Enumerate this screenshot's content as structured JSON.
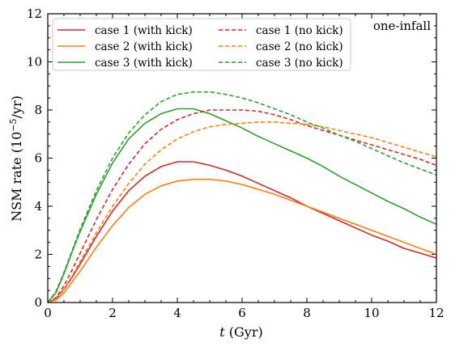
{
  "chart_data": {
    "type": "line",
    "annotation": "one-infall",
    "xlabel": "t (Gyr)",
    "ylabel": "NSM rate (10^-5/yr)",
    "xlim": [
      0,
      12
    ],
    "ylim": [
      0,
      12
    ],
    "x_ticks": [
      0,
      2,
      4,
      6,
      8,
      10,
      12
    ],
    "y_ticks": [
      0,
      2,
      4,
      6,
      8,
      10,
      12
    ],
    "grid": false,
    "legend_position": "top-left",
    "series": [
      {
        "name": "case 1 (with kick)",
        "color": "#d62728",
        "dash": "solid",
        "x": [
          0,
          0.25,
          0.5,
          0.75,
          1,
          1.5,
          2,
          2.5,
          3,
          3.5,
          4,
          4.5,
          5,
          5.5,
          6,
          6.5,
          7,
          7.5,
          8,
          8.5,
          9,
          9.5,
          10,
          10.5,
          11,
          11.5,
          12
        ],
        "y": [
          0,
          0.15,
          0.55,
          1.05,
          1.6,
          2.75,
          3.8,
          4.65,
          5.25,
          5.65,
          5.85,
          5.85,
          5.7,
          5.5,
          5.25,
          4.95,
          4.65,
          4.35,
          4.0,
          3.7,
          3.4,
          3.1,
          2.8,
          2.55,
          2.25,
          2.05,
          1.85
        ]
      },
      {
        "name": "case 2 (with kick)",
        "color": "#ff7f0e",
        "dash": "solid",
        "x": [
          0,
          0.25,
          0.5,
          0.75,
          1,
          1.5,
          2,
          2.5,
          3,
          3.5,
          4,
          4.5,
          5,
          5.5,
          6,
          6.5,
          7,
          7.5,
          8,
          8.5,
          9,
          9.5,
          10,
          10.5,
          11,
          11.5,
          12
        ],
        "y": [
          0,
          0.1,
          0.4,
          0.85,
          1.3,
          2.3,
          3.2,
          3.95,
          4.5,
          4.85,
          5.05,
          5.12,
          5.12,
          5.05,
          4.9,
          4.7,
          4.5,
          4.25,
          4.0,
          3.75,
          3.5,
          3.25,
          3.0,
          2.75,
          2.5,
          2.25,
          2.0
        ]
      },
      {
        "name": "case 3 (with kick)",
        "color": "#2ca02c",
        "dash": "solid",
        "x": [
          0,
          0.25,
          0.5,
          0.75,
          1,
          1.5,
          2,
          2.5,
          3,
          3.5,
          4,
          4.5,
          5,
          5.5,
          6,
          6.5,
          7,
          7.5,
          8,
          8.5,
          9,
          9.5,
          10,
          10.5,
          11,
          11.5,
          12
        ],
        "y": [
          0,
          0.4,
          1.2,
          2.1,
          2.95,
          4.5,
          5.8,
          6.8,
          7.45,
          7.85,
          8.05,
          8.05,
          7.85,
          7.55,
          7.25,
          6.9,
          6.6,
          6.3,
          6.0,
          5.65,
          5.25,
          4.9,
          4.55,
          4.2,
          3.9,
          3.55,
          3.25
        ]
      },
      {
        "name": "case 1 (no kick)",
        "color": "#d62728",
        "dash": "dashed",
        "x": [
          0,
          0.25,
          0.5,
          0.75,
          1,
          1.5,
          2,
          2.5,
          3,
          3.5,
          4,
          4.5,
          5,
          5.5,
          6,
          6.5,
          7,
          7.5,
          8,
          8.5,
          9,
          9.5,
          10,
          10.5,
          11,
          11.5,
          12
        ],
        "y": [
          0,
          0.2,
          0.7,
          1.35,
          2.05,
          3.45,
          4.7,
          5.75,
          6.6,
          7.2,
          7.6,
          7.85,
          8.0,
          8.0,
          8.0,
          7.95,
          7.8,
          7.6,
          7.35,
          7.15,
          6.95,
          6.75,
          6.55,
          6.35,
          6.15,
          5.95,
          5.7
        ]
      },
      {
        "name": "case 2 (no kick)",
        "color": "#ff7f0e",
        "dash": "dashed",
        "x": [
          0,
          0.25,
          0.5,
          0.75,
          1,
          1.5,
          2,
          2.5,
          3,
          3.5,
          4,
          4.5,
          5,
          5.5,
          6,
          6.5,
          7,
          7.5,
          8,
          8.5,
          9,
          9.5,
          10,
          10.5,
          11,
          11.5,
          12
        ],
        "y": [
          0,
          0.15,
          0.55,
          1.1,
          1.7,
          2.9,
          4.0,
          4.95,
          5.75,
          6.35,
          6.8,
          7.1,
          7.3,
          7.4,
          7.45,
          7.5,
          7.5,
          7.45,
          7.4,
          7.3,
          7.15,
          7.0,
          6.85,
          6.65,
          6.45,
          6.25,
          6.05
        ]
      },
      {
        "name": "case 3 (no kick)",
        "color": "#2ca02c",
        "dash": "dashed",
        "x": [
          0,
          0.25,
          0.5,
          0.75,
          1,
          1.5,
          2,
          2.5,
          3,
          3.5,
          4,
          4.5,
          5,
          5.5,
          6,
          6.5,
          7,
          7.5,
          8,
          8.5,
          9,
          9.5,
          10,
          10.5,
          11,
          11.5,
          12
        ],
        "y": [
          0,
          0.45,
          1.25,
          2.15,
          3.05,
          4.65,
          6.0,
          7.05,
          7.8,
          8.35,
          8.65,
          8.75,
          8.75,
          8.65,
          8.5,
          8.3,
          8.05,
          7.8,
          7.5,
          7.25,
          6.95,
          6.7,
          6.4,
          6.1,
          5.8,
          5.55,
          5.3
        ]
      }
    ]
  }
}
